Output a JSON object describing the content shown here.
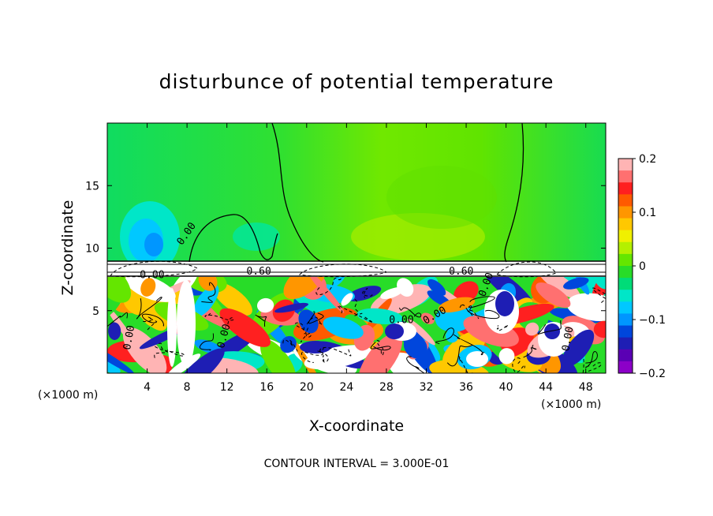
{
  "chart_data": {
    "type": "heatmap",
    "title": "disturbunce of potential temperature",
    "xlabel": "X-coordinate",
    "ylabel": "Z-coordinate",
    "x_unit_left": "(×1000 m)",
    "x_unit_right": "(×1000 m)",
    "footer": "CONTOUR INTERVAL = 3.000E-01",
    "xlim": [
      0,
      50
    ],
    "ylim": [
      0,
      20
    ],
    "x_ticks": [
      4,
      8,
      12,
      16,
      20,
      24,
      28,
      32,
      36,
      40,
      44,
      48
    ],
    "x_tick_labels": [
      "4",
      "8",
      "12",
      "16",
      "20",
      "24",
      "28",
      "32",
      "36",
      "40",
      "44",
      "48"
    ],
    "y_ticks": [
      5,
      10,
      15
    ],
    "y_tick_labels": [
      "5",
      "10",
      "15"
    ],
    "colorbar": {
      "min": -0.2,
      "max": 0.2,
      "ticks": [
        0.2,
        0.1,
        0,
        -0.1,
        -0.2
      ],
      "tick_labels": [
        "0.2",
        "0.1",
        "0",
        "−0.1",
        "−0.2"
      ],
      "colors": [
        "#ffb4b4",
        "#ff7070",
        "#ff2020",
        "#ff5a00",
        "#ff9600",
        "#ffc800",
        "#f0f000",
        "#b4f000",
        "#64e600",
        "#28dc28",
        "#00dc78",
        "#00e6c8",
        "#00c8ff",
        "#0096ff",
        "#0046dc",
        "#1e1eb4",
        "#5a00b4",
        "#8c00c8"
      ]
    },
    "contour_labels": [
      {
        "text": "0.00",
        "x": 8.2,
        "y": 11.0,
        "rot": -55
      },
      {
        "text": "0.00",
        "x": 4.5,
        "y": 7.6,
        "rot": 0
      },
      {
        "text": "0.60",
        "x": 15.2,
        "y": 7.9,
        "rot": 0
      },
      {
        "text": "0.60",
        "x": 35.5,
        "y": 7.9,
        "rot": 0
      },
      {
        "text": "0.00",
        "x": 29.5,
        "y": 4.0,
        "rot": 0
      },
      {
        "text": "0.00",
        "x": 33.0,
        "y": 4.4,
        "rot": -30
      },
      {
        "text": "0.00",
        "x": 2.5,
        "y": 2.8,
        "rot": -80
      },
      {
        "text": "0.00",
        "x": 12.0,
        "y": 2.9,
        "rot": -75
      },
      {
        "text": "0.00",
        "x": 38.3,
        "y": 7.0,
        "rot": -70
      },
      {
        "text": "0.00",
        "x": 46.5,
        "y": 2.7,
        "rot": -80
      }
    ],
    "grid": false,
    "legend": "colorbar-right"
  }
}
